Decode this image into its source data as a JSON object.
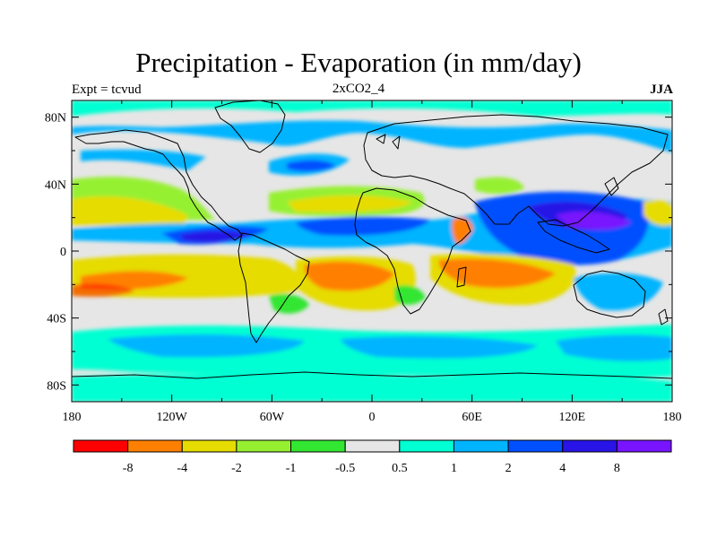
{
  "title": "Precipitation - Evaporation (in mm/day)",
  "experiment_label": "Expt = tcvud",
  "scenario_label": "2xCO2_4",
  "season_label": "JJA",
  "axes": {
    "lat_ticks": [
      {
        "label": "80N",
        "lat": 80
      },
      {
        "label": "40N",
        "lat": 40
      },
      {
        "label": "0",
        "lat": 0
      },
      {
        "label": "40S",
        "lat": -40
      },
      {
        "label": "80S",
        "lat": -80
      }
    ],
    "lon_ticks": [
      {
        "label": "180",
        "lon": -180
      },
      {
        "label": "120W",
        "lon": -120
      },
      {
        "label": "60W",
        "lon": -60
      },
      {
        "label": "0",
        "lon": 0
      },
      {
        "label": "60E",
        "lon": 60
      },
      {
        "label": "120E",
        "lon": 120
      },
      {
        "label": "180",
        "lon": 180
      }
    ],
    "lon_range": [
      -180,
      180
    ],
    "lat_range": [
      -90,
      90
    ]
  },
  "colorbar": {
    "colors": [
      "#ff0000",
      "#ff8000",
      "#e6dc00",
      "#96f032",
      "#32e632",
      "#e6e6e6",
      "#00ffd2",
      "#00b4ff",
      "#0050ff",
      "#2814e6",
      "#7814ff"
    ],
    "labels": [
      "-8",
      "-4",
      "-2",
      "-1",
      "-0.5",
      "0.5",
      "1",
      "2",
      "4",
      "8"
    ]
  },
  "colors": {
    "land_outline": "#000000",
    "background_field": "#e6e6e6"
  }
}
